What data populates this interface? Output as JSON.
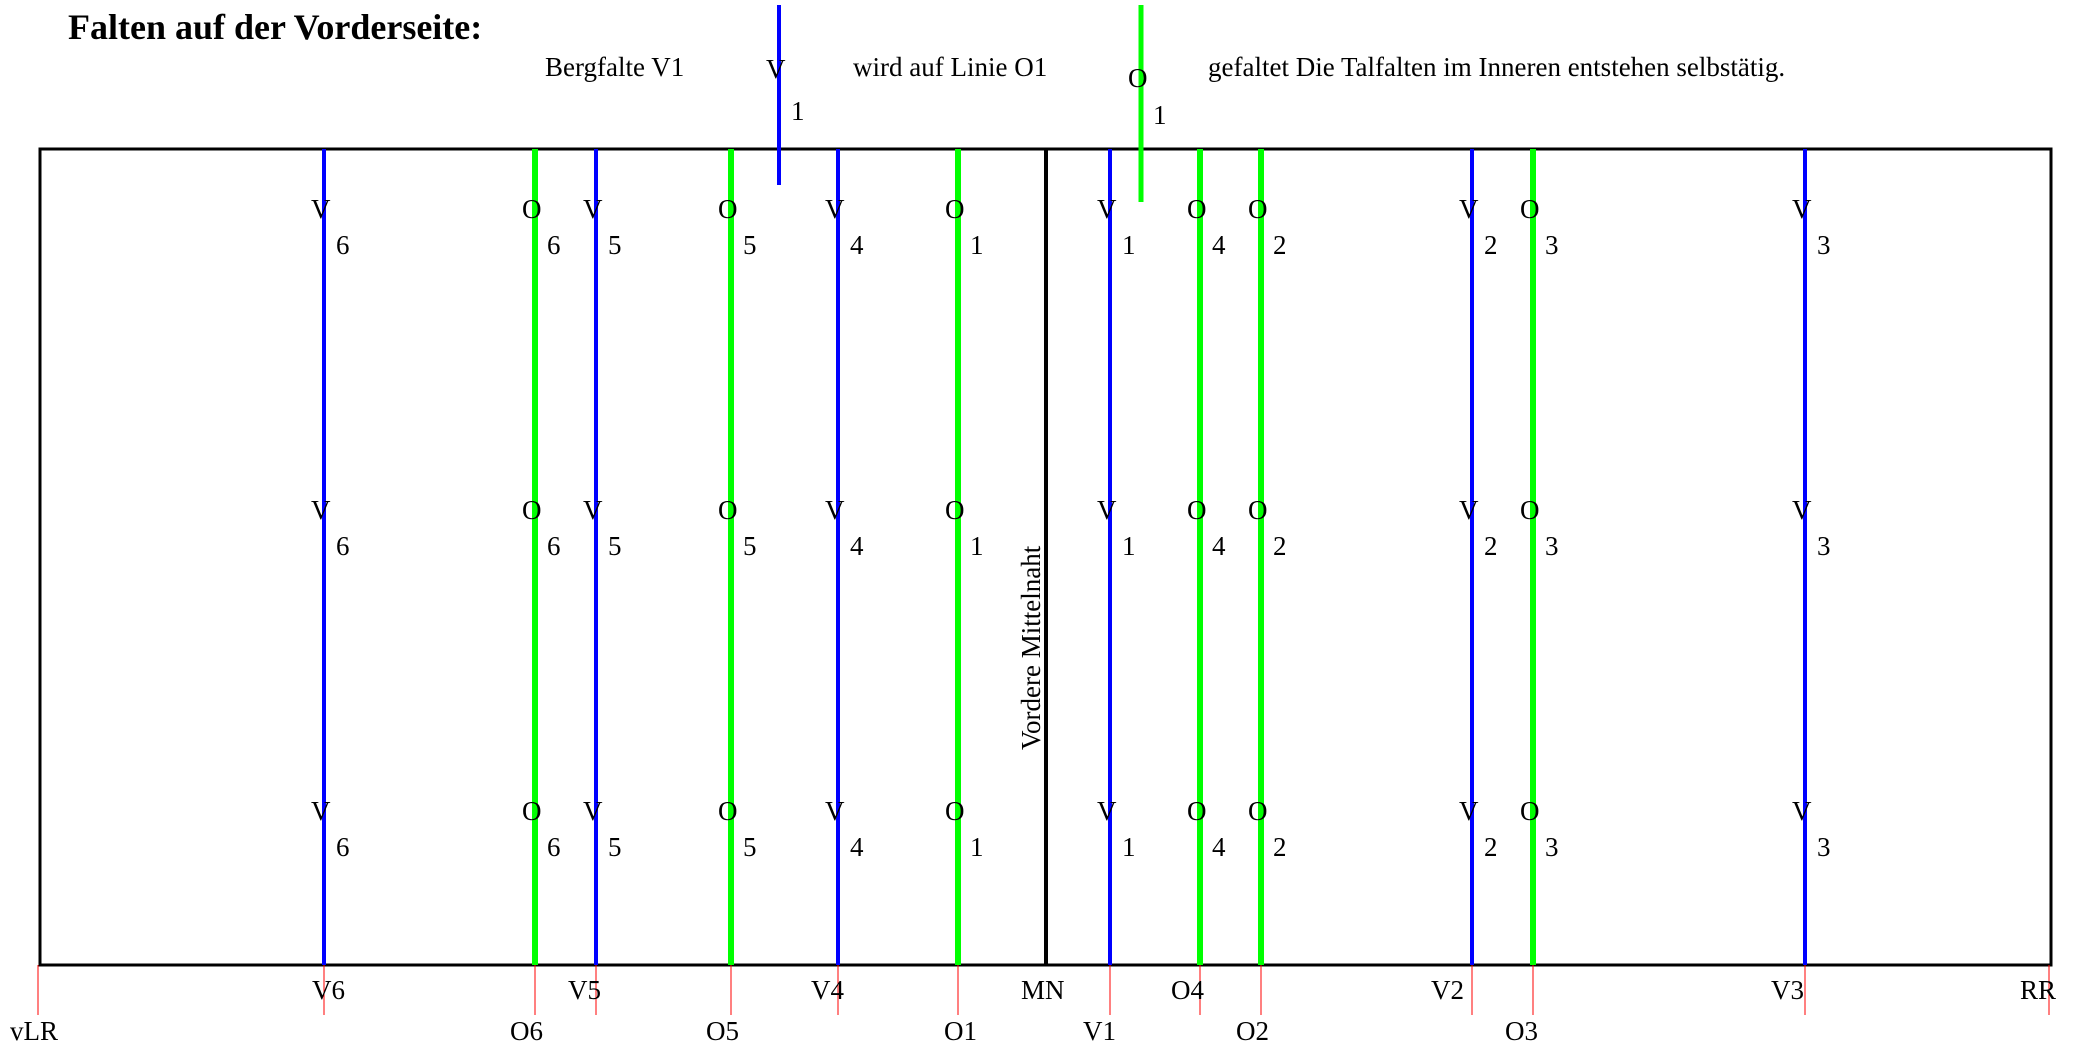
{
  "title": "Falten auf der Vorderseite:",
  "legend": {
    "text_before": "Bergfalte V1",
    "text_middle": "wird auf  Linie O1",
    "text_after": "gefaltet Die Talfalten im Inneren entstehen selbstätig.",
    "mountain_symbol": {
      "letter": "V",
      "number": "1"
    },
    "valley_symbol": {
      "letter": "O",
      "number": "1"
    }
  },
  "colors": {
    "mountain_fold": "#0000ff",
    "valley_fold": "#00ff00",
    "tick": "#ff0000",
    "outline": "#000000"
  },
  "seam_label": "Vordere Mittelnaht",
  "folds": [
    {
      "id": "V6",
      "letter": "V",
      "number": "6",
      "type": "mountain"
    },
    {
      "id": "O6",
      "letter": "O",
      "number": "6",
      "type": "valley"
    },
    {
      "id": "V5",
      "letter": "V",
      "number": "5",
      "type": "mountain"
    },
    {
      "id": "O5",
      "letter": "O",
      "number": "5",
      "type": "valley"
    },
    {
      "id": "V4",
      "letter": "V",
      "number": "4",
      "type": "mountain"
    },
    {
      "id": "O1",
      "letter": "O",
      "number": "1",
      "type": "valley"
    },
    {
      "id": "V1",
      "letter": "V",
      "number": "1",
      "type": "mountain"
    },
    {
      "id": "O4",
      "letter": "O",
      "number": "4",
      "type": "valley"
    },
    {
      "id": "O2",
      "letter": "O",
      "number": "2",
      "type": "valley"
    },
    {
      "id": "V2",
      "letter": "V",
      "number": "2",
      "type": "mountain"
    },
    {
      "id": "O3",
      "letter": "O",
      "number": "3",
      "type": "valley"
    },
    {
      "id": "V3",
      "letter": "V",
      "number": "3",
      "type": "mountain"
    }
  ],
  "bottom_labels": {
    "row1": [
      "V6",
      "V5",
      "V4",
      "MN",
      "O4",
      "V2",
      "V3",
      "RR"
    ],
    "row2": [
      "vLR",
      "O6",
      "O5",
      "O1",
      "V1",
      "O2",
      "O3"
    ]
  }
}
